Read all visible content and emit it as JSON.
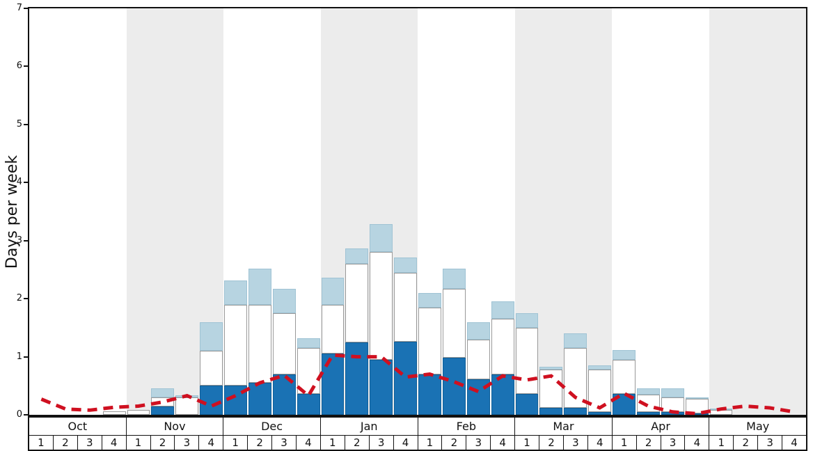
{
  "chart_data": {
    "type": "bar",
    "title": "",
    "ylabel": "Days per week",
    "ylim": [
      0,
      7
    ],
    "yticks": [
      0,
      1,
      2,
      3,
      4,
      5,
      6,
      7
    ],
    "months": [
      "Oct",
      "Nov",
      "Dec",
      "Jan",
      "Feb",
      "Mar",
      "Apr",
      "May"
    ],
    "week_labels": [
      "1",
      "2",
      "3",
      "4"
    ],
    "grid": false,
    "legend": "none",
    "stacked_bars_cumulative": {
      "note_units": "days per week, cumulative segment tops per week (Oct w1 .. May w4)",
      "dark_blue_top": [
        0,
        0,
        0,
        0,
        0,
        0.15,
        0,
        0.5,
        0.5,
        0.55,
        0.7,
        0.36,
        1.05,
        1.25,
        0.95,
        1.26,
        0.7,
        0.98,
        0.61,
        0.7,
        0.36,
        0.12,
        0.12,
        0.05,
        0.36,
        0.05,
        0.05,
        0.03,
        0,
        0,
        0,
        0
      ],
      "white_top": [
        0,
        0,
        0,
        0.06,
        0.08,
        0.3,
        0.3,
        1.1,
        1.9,
        1.9,
        1.75,
        1.15,
        1.9,
        2.6,
        2.8,
        2.45,
        1.85,
        2.17,
        1.3,
        1.65,
        1.5,
        0.78,
        1.15,
        0.78,
        0.95,
        0.35,
        0.3,
        0.27,
        0.08,
        0,
        0,
        0
      ],
      "light_blue_top": [
        0,
        0,
        0,
        0.06,
        0.08,
        0.45,
        0.33,
        1.6,
        2.31,
        2.52,
        2.17,
        1.32,
        2.36,
        2.87,
        3.29,
        2.71,
        2.1,
        2.52,
        1.6,
        1.95,
        1.75,
        0.83,
        1.4,
        0.85,
        1.11,
        0.45,
        0.45,
        0.3,
        0.1,
        0,
        0,
        0
      ]
    },
    "line_series": {
      "name": "red-dashed-trend",
      "values": [
        0.27,
        0.1,
        0.08,
        0.13,
        0.15,
        0.22,
        0.33,
        0.15,
        0.33,
        0.55,
        0.68,
        0.33,
        1.03,
        1.0,
        1.0,
        0.65,
        0.7,
        0.57,
        0.4,
        0.67,
        0.6,
        0.67,
        0.3,
        0.12,
        0.37,
        0.15,
        0.05,
        0.02,
        0.1,
        0.15,
        0.12,
        0.05
      ]
    },
    "colors": {
      "dark_blue": "#1a72b4",
      "dark_blue_border": "#0e5e98",
      "light_blue": "#b7d4e1",
      "light_blue_border": "#9fc3d4",
      "white_segment": "#ffffff",
      "line_red": "#cf1020",
      "stripe_gray": "#ececec",
      "axis_black": "#111111"
    }
  }
}
